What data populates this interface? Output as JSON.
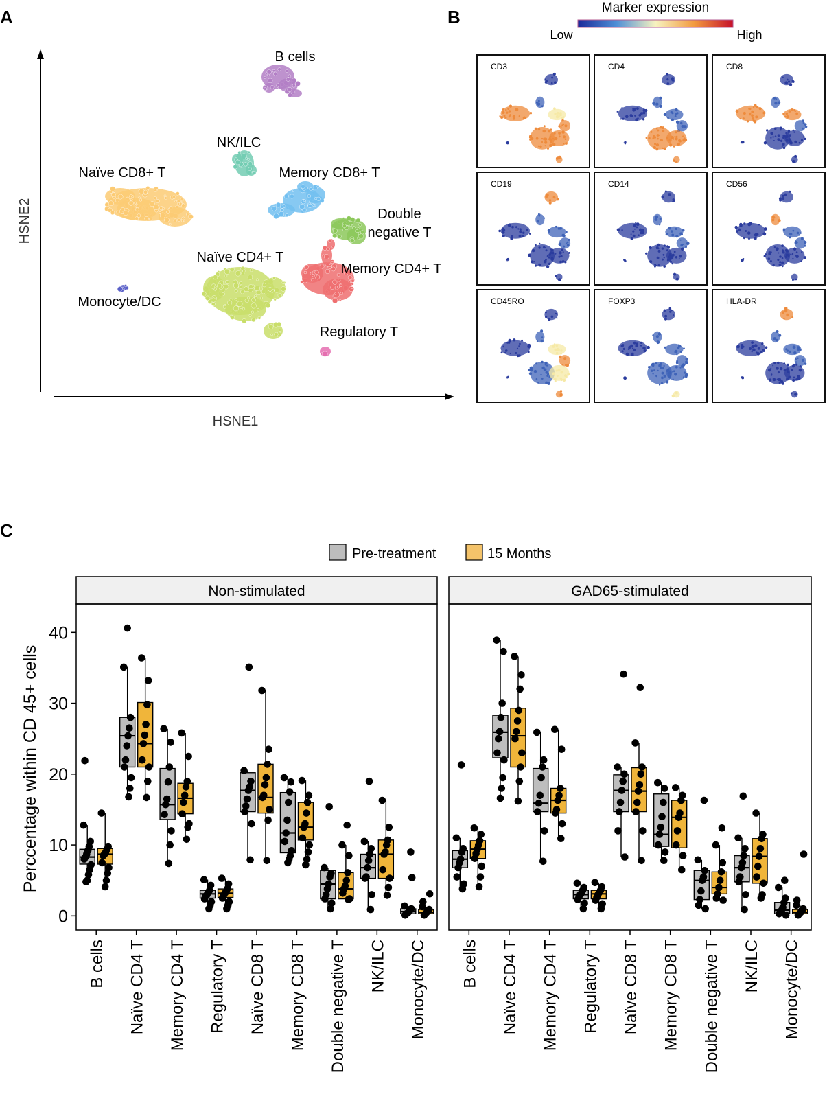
{
  "panels": {
    "a": "A",
    "b": "B",
    "c": "C"
  },
  "tsne": {
    "xlabel": "HSNE1",
    "ylabel": "HSNE2",
    "clusters": [
      {
        "name": "B cells",
        "color": "#b37fc6"
      },
      {
        "name": "NK/ILC",
        "color": "#73cdb3"
      },
      {
        "name": "Naïve CD8+ T",
        "color": "#fccb74"
      },
      {
        "name": "Memory CD8+ T",
        "color": "#72bff0"
      },
      {
        "name": "Double negative T",
        "color": "#8cc85a"
      },
      {
        "name": "Naïve CD4+ T",
        "color": "#c9de6a"
      },
      {
        "name": "Memory CD4+ T",
        "color": "#ef6f70"
      },
      {
        "name": "Monocyte/DC",
        "color": "#5a60c8"
      },
      {
        "name": "Regulatory T",
        "color": "#e56fb0"
      }
    ]
  },
  "marker_panel": {
    "title": "Marker expression",
    "low": "Low",
    "high": "High",
    "markers": [
      {
        "name": "CD3",
        "pattern": "cd3"
      },
      {
        "name": "CD4",
        "pattern": "cd4"
      },
      {
        "name": "CD8",
        "pattern": "cd8"
      },
      {
        "name": "CD19",
        "pattern": "cd19"
      },
      {
        "name": "CD14",
        "pattern": "low"
      },
      {
        "name": "CD56",
        "pattern": "cd56"
      },
      {
        "name": "CD45RO",
        "pattern": "cd45ro"
      },
      {
        "name": "FOXP3",
        "pattern": "foxp3"
      },
      {
        "name": "HLA-DR",
        "pattern": "hladr"
      }
    ]
  },
  "chart_data": {
    "type": "boxplot",
    "ylabel": "Perccentage within CD 45+ cells",
    "ylim": [
      -2,
      44
    ],
    "yticks": [
      0,
      10,
      20,
      30,
      40
    ],
    "legend": [
      {
        "label": "Pre-treatment",
        "color": "#bdbdbd"
      },
      {
        "label": "15 Months",
        "color": "#f0b53a"
      }
    ],
    "categories": [
      "B cells",
      "Naïve CD4 T",
      "Memory CD4 T",
      "Regulatory T",
      "Naïve CD8 T",
      "Memory CD8 T",
      "Double negative T",
      "NK/ILC",
      "Monocyte/DC"
    ],
    "facets": [
      {
        "title": "Non-stimulated",
        "groups": [
          {
            "pre": {
              "q1": 7.3,
              "median": 8.3,
              "q3": 9.4,
              "min": 4.8,
              "max": 12.8,
              "outliers": [
                21.9
              ]
            },
            "post": {
              "q1": 7.3,
              "median": 8.7,
              "q3": 9.5,
              "min": 4.1,
              "max": 14.5,
              "outliers": []
            },
            "pre_pts": [
              12.8,
              10.5,
              9.8,
              9.2,
              8.7,
              8.3,
              8.0,
              7.2,
              6.5,
              5.8,
              5.0,
              4.8
            ],
            "post_pts": [
              14.5,
              9.8,
              9.4,
              9.0,
              8.7,
              8.5,
              7.5,
              6.8,
              6.0,
              5.0,
              4.1
            ]
          },
          {
            "pre": {
              "q1": 21.0,
              "median": 25.4,
              "q3": 28.0,
              "min": 16.8,
              "max": 35.1,
              "outliers": [
                40.6
              ]
            },
            "post": {
              "q1": 21.0,
              "median": 24.3,
              "q3": 30.1,
              "min": 16.7,
              "max": 36.4,
              "outliers": []
            },
            "pre_pts": [
              35.1,
              28.0,
              26.5,
              25.4,
              24.0,
              22.0,
              21.0,
              19.5,
              18.0,
              16.8
            ],
            "post_pts": [
              36.4,
              33.2,
              29.8,
              27.0,
              25.5,
              24.3,
              22.0,
              21.0,
              19.0,
              16.7
            ]
          },
          {
            "pre": {
              "q1": 13.6,
              "median": 15.7,
              "q3": 20.8,
              "min": 7.4,
              "max": 26.4,
              "outliers": []
            },
            "post": {
              "q1": 14.4,
              "median": 16.6,
              "q3": 18.7,
              "min": 10.8,
              "max": 25.8,
              "outliers": []
            },
            "pre_pts": [
              26.4,
              24.5,
              21.0,
              18.9,
              16.5,
              15.7,
              14.3,
              12.0,
              10.0,
              7.4
            ],
            "post_pts": [
              25.8,
              22.5,
              19.0,
              18.2,
              17.0,
              16.0,
              14.4,
              13.0,
              12.5,
              10.8
            ]
          },
          {
            "pre": {
              "q1": 2.5,
              "median": 3.1,
              "q3": 3.6,
              "min": 0.9,
              "max": 5.1,
              "outliers": []
            },
            "post": {
              "q1": 2.6,
              "median": 3.2,
              "q3": 3.8,
              "min": 1.0,
              "max": 5.3,
              "outliers": []
            },
            "pre_pts": [
              5.1,
              4.3,
              3.6,
              3.3,
              3.0,
              2.8,
              2.4,
              2.0,
              1.5,
              1.0
            ],
            "post_pts": [
              5.3,
              4.5,
              3.8,
              3.4,
              3.2,
              2.9,
              2.5,
              2.0,
              1.5,
              1.0
            ]
          },
          {
            "pre": {
              "q1": 14.7,
              "median": 17.7,
              "q3": 20.2,
              "min": 7.9,
              "max": 20.5,
              "outliers": [
                35.1
              ]
            },
            "post": {
              "q1": 14.5,
              "median": 16.7,
              "q3": 21.4,
              "min": 7.8,
              "max": 31.8,
              "outliers": []
            },
            "pre_pts": [
              20.5,
              19.0,
              18.2,
              17.7,
              16.5,
              15.5,
              14.7,
              13.0,
              7.9
            ],
            "post_pts": [
              31.8,
              23.5,
              21.4,
              19.5,
              18.5,
              17.0,
              16.7,
              15.0,
              13.5,
              7.8
            ]
          },
          {
            "pre": {
              "q1": 8.9,
              "median": 11.7,
              "q3": 17.4,
              "min": 7.5,
              "max": 19.5,
              "outliers": []
            },
            "post": {
              "q1": 10.7,
              "median": 12.5,
              "q3": 16.0,
              "min": 7.2,
              "max": 19.1,
              "outliers": []
            },
            "pre_pts": [
              19.5,
              18.9,
              17.5,
              16.0,
              13.5,
              11.7,
              10.5,
              9.2,
              8.5,
              8.0,
              7.5
            ],
            "post_pts": [
              19.1,
              17.0,
              16.0,
              14.5,
              13.0,
              12.5,
              11.0,
              10.0,
              9.0,
              8.0,
              7.2
            ]
          },
          {
            "pre": {
              "q1": 2.4,
              "median": 4.5,
              "q3": 6.4,
              "min": 1.0,
              "max": 6.8,
              "outliers": [
                15.4
              ]
            },
            "post": {
              "q1": 2.4,
              "median": 3.8,
              "q3": 6.1,
              "min": 2.3,
              "max": 10.0,
              "outliers": [
                12.8
              ]
            },
            "pre_pts": [
              6.8,
              6.0,
              5.5,
              4.5,
              3.8,
              3.0,
              2.4,
              1.8,
              1.0
            ],
            "post_pts": [
              10.0,
              8.5,
              6.1,
              5.0,
              4.2,
              3.8,
              3.2,
              2.4,
              2.3
            ]
          },
          {
            "pre": {
              "q1": 5.3,
              "median": 6.8,
              "q3": 8.7,
              "min": 0.9,
              "max": 10.5,
              "outliers": [
                19.0
              ]
            },
            "post": {
              "q1": 5.3,
              "median": 8.7,
              "q3": 10.7,
              "min": 2.9,
              "max": 16.3,
              "outliers": []
            },
            "pre_pts": [
              10.5,
              9.5,
              8.7,
              7.8,
              6.8,
              5.5,
              5.3,
              3.0,
              0.9
            ],
            "post_pts": [
              16.3,
              12.5,
              10.7,
              10.0,
              9.0,
              8.7,
              6.5,
              5.3,
              4.0,
              2.9
            ]
          },
          {
            "pre": {
              "q1": 0.3,
              "median": 0.6,
              "q3": 1.0,
              "min": 0.1,
              "max": 1.4,
              "outliers": [
                5.4,
                9.0
              ]
            },
            "post": {
              "q1": 0.3,
              "median": 0.5,
              "q3": 0.9,
              "min": 0.1,
              "max": 1.3,
              "outliers": [
                2.0,
                3.1
              ]
            },
            "pre_pts": [
              1.4,
              1.0,
              0.8,
              0.6,
              0.4,
              0.3,
              0.1
            ],
            "post_pts": [
              1.3,
              0.9,
              0.7,
              0.5,
              0.3,
              0.1
            ]
          }
        ]
      },
      {
        "title": "GAD65-stimulated",
        "groups": [
          {
            "pre": {
              "q1": 6.8,
              "median": 8.0,
              "q3": 9.2,
              "min": 3.8,
              "max": 11.0,
              "outliers": [
                21.3
              ]
            },
            "post": {
              "q1": 8.1,
              "median": 9.4,
              "q3": 10.6,
              "min": 4.1,
              "max": 12.4,
              "outliers": []
            },
            "pre_pts": [
              11.0,
              9.5,
              9.0,
              8.0,
              7.5,
              6.8,
              5.5,
              4.5,
              3.8
            ],
            "post_pts": [
              12.4,
              11.5,
              10.6,
              10.0,
              9.4,
              8.8,
              8.1,
              7.0,
              5.5,
              4.1
            ]
          },
          {
            "pre": {
              "q1": 22.3,
              "median": 25.9,
              "q3": 28.3,
              "min": 16.6,
              "max": 38.9,
              "outliers": []
            },
            "post": {
              "q1": 21.0,
              "median": 25.4,
              "q3": 29.3,
              "min": 16.2,
              "max": 36.6,
              "outliers": []
            },
            "pre_pts": [
              38.9,
              37.3,
              30.0,
              28.0,
              26.0,
              25.0,
              23.0,
              22.0,
              19.5,
              18.0,
              16.6
            ],
            "post_pts": [
              36.6,
              34.0,
              32.0,
              29.0,
              27.5,
              26.0,
              25.0,
              23.0,
              21.0,
              19.0,
              16.2
            ]
          },
          {
            "pre": {
              "q1": 14.7,
              "median": 15.9,
              "q3": 20.8,
              "min": 7.7,
              "max": 25.9,
              "outliers": []
            },
            "post": {
              "q1": 14.5,
              "median": 16.3,
              "q3": 18.0,
              "min": 10.9,
              "max": 26.3,
              "outliers": []
            },
            "pre_pts": [
              25.9,
              22.0,
              21.0,
              19.5,
              17.0,
              15.9,
              14.7,
              12.0,
              7.7
            ],
            "post_pts": [
              26.3,
              23.5,
              18.0,
              17.0,
              16.3,
              15.0,
              14.5,
              13.0,
              10.9
            ]
          },
          {
            "pre": {
              "q1": 2.4,
              "median": 3.0,
              "q3": 3.6,
              "min": 1.0,
              "max": 4.6,
              "outliers": []
            },
            "post": {
              "q1": 2.4,
              "median": 3.1,
              "q3": 3.6,
              "min": 1.0,
              "max": 4.7,
              "outliers": []
            },
            "pre_pts": [
              4.6,
              4.0,
              3.6,
              3.2,
              3.0,
              2.7,
              2.3,
              1.8,
              1.0
            ],
            "post_pts": [
              4.7,
              4.1,
              3.6,
              3.3,
              3.0,
              2.6,
              2.2,
              1.7,
              1.0
            ]
          },
          {
            "pre": {
              "q1": 14.7,
              "median": 17.7,
              "q3": 19.9,
              "min": 8.3,
              "max": 21.0,
              "outliers": [
                34.1
              ]
            },
            "post": {
              "q1": 14.7,
              "median": 17.6,
              "q3": 20.9,
              "min": 7.8,
              "max": 24.4,
              "outliers": [
                32.2
              ]
            },
            "pre_pts": [
              21.0,
              20.0,
              19.0,
              17.7,
              16.0,
              14.7,
              12.0,
              8.3
            ],
            "post_pts": [
              24.4,
              21.0,
              20.0,
              18.5,
              17.6,
              16.0,
              14.7,
              12.0,
              7.8
            ]
          },
          {
            "pre": {
              "q1": 9.8,
              "median": 11.5,
              "q3": 17.2,
              "min": 7.8,
              "max": 18.8,
              "outliers": []
            },
            "post": {
              "q1": 9.6,
              "median": 13.9,
              "q3": 16.3,
              "min": 6.5,
              "max": 18.1,
              "outliers": []
            },
            "pre_pts": [
              18.8,
              18.0,
              16.0,
              14.0,
              12.5,
              11.5,
              10.0,
              9.0,
              7.8
            ],
            "post_pts": [
              18.1,
              17.0,
              16.3,
              14.5,
              13.9,
              12.0,
              10.0,
              8.5,
              6.5
            ]
          },
          {
            "pre": {
              "q1": 2.3,
              "median": 5.0,
              "q3": 6.4,
              "min": 1.0,
              "max": 7.9,
              "outliers": [
                16.3
              ]
            },
            "post": {
              "q1": 3.1,
              "median": 4.0,
              "q3": 6.2,
              "min": 2.2,
              "max": 10.0,
              "outliers": [
                12.4
              ]
            },
            "pre_pts": [
              7.9,
              6.4,
              5.5,
              5.0,
              3.5,
              2.3,
              1.5,
              1.0
            ],
            "post_pts": [
              10.0,
              7.5,
              6.2,
              5.0,
              4.0,
              3.1,
              2.5,
              2.2
            ]
          },
          {
            "pre": {
              "q1": 4.8,
              "median": 6.8,
              "q3": 8.5,
              "min": 0.9,
              "max": 11.0,
              "outliers": [
                16.9
              ]
            },
            "post": {
              "q1": 4.6,
              "median": 8.4,
              "q3": 10.9,
              "min": 2.5,
              "max": 14.5,
              "outliers": []
            },
            "pre_pts": [
              11.0,
              9.5,
              8.5,
              7.5,
              6.8,
              5.5,
              4.8,
              3.0,
              0.9
            ],
            "post_pts": [
              14.5,
              11.5,
              10.9,
              9.5,
              8.4,
              7.0,
              5.5,
              4.6,
              3.0,
              2.5
            ]
          },
          {
            "pre": {
              "q1": 0.3,
              "median": 0.8,
              "q3": 1.9,
              "min": 0.1,
              "max": 4.0,
              "outliers": [
                5.0
              ]
            },
            "post": {
              "q1": 0.3,
              "median": 0.5,
              "q3": 0.9,
              "min": 0.1,
              "max": 1.5,
              "outliers": [
                2.2,
                8.7
              ]
            },
            "pre_pts": [
              4.0,
              2.5,
              1.9,
              1.2,
              0.8,
              0.5,
              0.3,
              0.1
            ],
            "post_pts": [
              1.5,
              1.0,
              0.8,
              0.5,
              0.3,
              0.1
            ]
          }
        ]
      }
    ]
  }
}
